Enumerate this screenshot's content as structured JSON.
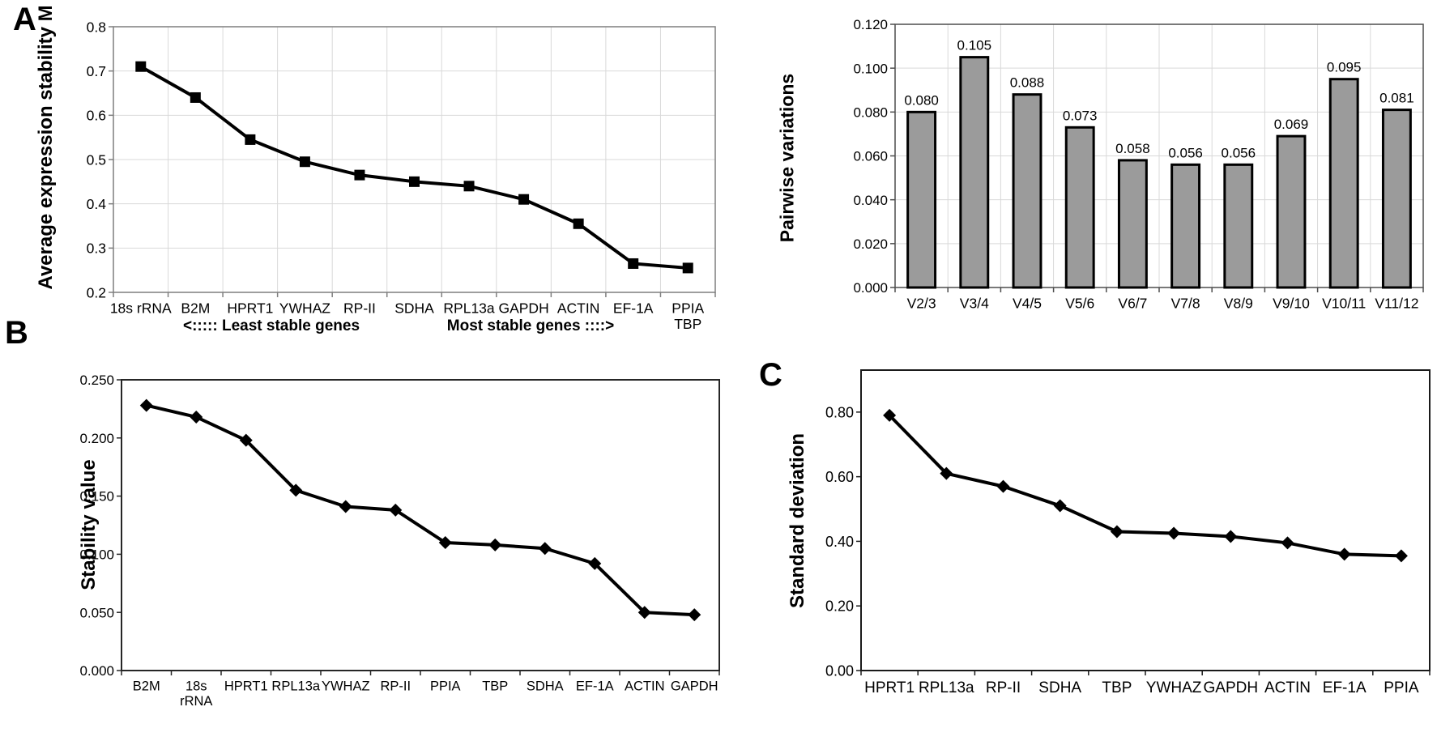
{
  "figure": {
    "background": "#ffffff",
    "panels": [
      {
        "letter": "A"
      },
      {
        "letter": "B"
      },
      {
        "letter": "C"
      }
    ],
    "colors": {
      "line": "#000000",
      "marker": "#000000",
      "gridline": "#d9d9d9",
      "bar_fill": "#9b9b9b",
      "bar_stroke": "#000000"
    }
  },
  "chart_data": [
    {
      "id": "average-expression-stability",
      "type": "line",
      "title": "",
      "xlabel": "",
      "ylabel": "Average expression stability M",
      "categories": [
        "18s rRNA",
        "B2M",
        "HPRT1",
        "YWHAZ",
        "RP-II",
        "SDHA",
        "RPL13a",
        "GAPDH",
        "ACTIN",
        "EF-1A",
        "PPIA\nTBP"
      ],
      "values": [
        0.71,
        0.64,
        0.545,
        0.495,
        0.465,
        0.45,
        0.44,
        0.41,
        0.355,
        0.265,
        0.255
      ],
      "ylim": [
        0.2,
        0.8
      ],
      "ytick_vals": [
        0.8,
        0.7,
        0.6,
        0.5,
        0.4,
        0.3,
        0.2
      ],
      "ytick_labels": [
        "0.8",
        "0.7",
        "0.6",
        "0.5",
        "0.4",
        "0.3",
        "0.2"
      ],
      "grid": true,
      "grid_color": "#d9d9d9",
      "marker": "square",
      "line_color": "#000000",
      "annotation_left": "<:::::  Least stable genes",
      "annotation_right": "Most stable genes ::::>",
      "legend": "none"
    },
    {
      "id": "pairwise-variations",
      "type": "bar",
      "title": "",
      "xlabel": "",
      "ylabel": "Pairwise variations",
      "categories": [
        "V2/3",
        "V3/4",
        "V4/5",
        "V5/6",
        "V6/7",
        "V7/8",
        "V8/9",
        "V9/10",
        "V10/11",
        "V11/12"
      ],
      "values": [
        0.08,
        0.105,
        0.088,
        0.073,
        0.058,
        0.056,
        0.056,
        0.069,
        0.095,
        0.081
      ],
      "value_labels": [
        "0.080",
        "0.105",
        "0.088",
        "0.073",
        "0.058",
        "0.056",
        "0.056",
        "0.069",
        "0.095",
        "0.081"
      ],
      "ylim": [
        0,
        0.12
      ],
      "ytick_vals": [
        0.12,
        0.1,
        0.08,
        0.06,
        0.04,
        0.02,
        0
      ],
      "ytick_labels": [
        "0.120",
        "0.100",
        "0.080",
        "0.060",
        "0.040",
        "0.020",
        "0.000"
      ],
      "grid": true,
      "grid_color": "#d9d9d9",
      "bar_fill": "#9b9b9b",
      "bar_stroke": "#000000",
      "legend": "none"
    },
    {
      "id": "stability-value",
      "type": "line",
      "title": "",
      "xlabel": "",
      "ylabel": "Stability value",
      "categories": [
        "B2M",
        "18s\nrRNA",
        "HPRT1",
        "RPL13a",
        "YWHAZ",
        "RP-II",
        "PPIA",
        "TBP",
        "SDHA",
        "EF-1A",
        "ACTIN",
        "GAPDH"
      ],
      "values": [
        0.228,
        0.218,
        0.198,
        0.155,
        0.141,
        0.138,
        0.11,
        0.108,
        0.105,
        0.092,
        0.05,
        0.048
      ],
      "ylim": [
        0,
        0.25
      ],
      "ytick_vals": [
        0.25,
        0.2,
        0.15,
        0.1,
        0.05,
        0
      ],
      "ytick_labels": [
        "0.250",
        "0.200",
        "0.150",
        "0.100",
        "0.050",
        "0.000"
      ],
      "grid": false,
      "marker": "diamond",
      "line_color": "#000000",
      "legend": "none"
    },
    {
      "id": "standard-deviation",
      "type": "line",
      "title": "",
      "xlabel": "",
      "ylabel": "Standard deviation",
      "categories": [
        "HPRT1",
        "RPL13a",
        "RP-II",
        "SDHA",
        "TBP",
        "YWHAZ",
        "GAPDH",
        "ACTIN",
        "EF-1A",
        "PPIA"
      ],
      "values": [
        0.79,
        0.61,
        0.57,
        0.51,
        0.43,
        0.425,
        0.415,
        0.395,
        0.36,
        0.355
      ],
      "ylim": [
        0,
        0.93
      ],
      "ytick_vals": [
        0.8,
        0.6,
        0.4,
        0.2,
        0
      ],
      "ytick_labels": [
        "0.80",
        "0.60",
        "0.40",
        "0.20",
        "0.00"
      ],
      "grid": false,
      "marker": "diamond",
      "line_color": "#000000",
      "legend": "none"
    }
  ]
}
